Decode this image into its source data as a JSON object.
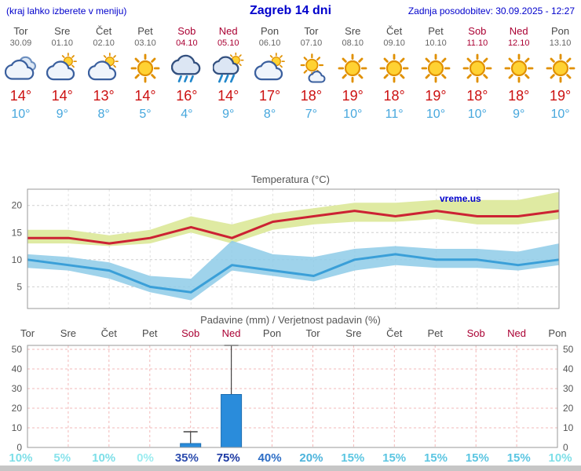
{
  "header": {
    "left_note": "(kraj lahko izberete v meniju)",
    "title": "Zagreb 14 dni",
    "updated": "Zadnja posodobitev: 30.09.2025 - 12:27"
  },
  "colors": {
    "link_blue": "#0000cc",
    "weekend_red": "#aa0033",
    "high_temp_red": "#cc1111",
    "low_temp_blue": "#46a7dd"
  },
  "days": [
    {
      "name": "Tor",
      "date": "30.09",
      "weekend": false,
      "icon": "cloudy",
      "high": "14°",
      "low": "10°"
    },
    {
      "name": "Sre",
      "date": "01.10",
      "weekend": false,
      "icon": "partly-cloudy",
      "high": "14°",
      "low": "9°"
    },
    {
      "name": "Čet",
      "date": "02.10",
      "weekend": false,
      "icon": "partly-cloudy",
      "high": "13°",
      "low": "8°"
    },
    {
      "name": "Pet",
      "date": "03.10",
      "weekend": false,
      "icon": "sun",
      "high": "14°",
      "low": "5°"
    },
    {
      "name": "Sob",
      "date": "04.10",
      "weekend": true,
      "icon": "rain",
      "high": "16°",
      "low": "4°"
    },
    {
      "name": "Ned",
      "date": "05.10",
      "weekend": true,
      "icon": "rain-sun",
      "high": "14°",
      "low": "9°"
    },
    {
      "name": "Pon",
      "date": "06.10",
      "weekend": false,
      "icon": "partly-cloudy",
      "high": "17°",
      "low": "8°"
    },
    {
      "name": "Tor",
      "date": "07.10",
      "weekend": false,
      "icon": "sun-small-cloud",
      "high": "18°",
      "low": "7°"
    },
    {
      "name": "Sre",
      "date": "08.10",
      "weekend": false,
      "icon": "sun",
      "high": "19°",
      "low": "10°"
    },
    {
      "name": "Čet",
      "date": "09.10",
      "weekend": false,
      "icon": "sun",
      "high": "18°",
      "low": "11°"
    },
    {
      "name": "Pet",
      "date": "10.10",
      "weekend": false,
      "icon": "sun",
      "high": "19°",
      "low": "10°"
    },
    {
      "name": "Sob",
      "date": "11.10",
      "weekend": true,
      "icon": "sun",
      "high": "18°",
      "low": "10°"
    },
    {
      "name": "Ned",
      "date": "12.10",
      "weekend": true,
      "icon": "sun",
      "high": "18°",
      "low": "9°"
    },
    {
      "name": "Pon",
      "date": "13.10",
      "weekend": false,
      "icon": "sun",
      "high": "19°",
      "low": "10°"
    }
  ],
  "chart_data": [
    {
      "type": "line",
      "title": "Temperatura (°C)",
      "x_labels": [
        "Tor",
        "Sre",
        "Čet",
        "Pet",
        "Sob",
        "Ned",
        "Pon",
        "Tor",
        "Sre",
        "Čet",
        "Pet",
        "Sob",
        "Ned",
        "Pon"
      ],
      "ylim": [
        1,
        23
      ],
      "yticks": [
        5,
        10,
        15,
        20
      ],
      "grid": true,
      "legend": "none",
      "watermark": "vreme.us",
      "series": [
        {
          "name": "max-temperature",
          "color": "#cc2233",
          "values": [
            14,
            14,
            13,
            14,
            16,
            14,
            17,
            18,
            19,
            18,
            19,
            18,
            18,
            19
          ]
        },
        {
          "name": "min-temperature",
          "color": "#3a9fd8",
          "values": [
            10,
            9,
            8,
            5,
            4,
            9,
            8,
            7,
            10,
            11,
            10,
            10,
            9,
            10
          ]
        }
      ],
      "bands": [
        {
          "name": "max-range",
          "color": "#dfeaa2",
          "upper": [
            15.5,
            15.5,
            14.5,
            15.5,
            18,
            16.5,
            18.5,
            19.5,
            20.5,
            20.5,
            21,
            21,
            21,
            22.5
          ],
          "lower": [
            13,
            13,
            12.5,
            13,
            15,
            13,
            15.5,
            16.5,
            17,
            17,
            17.5,
            16.5,
            16.5,
            17.5
          ]
        },
        {
          "name": "min-range",
          "color": "#8ecbe8",
          "upper": [
            11,
            10.5,
            9.5,
            7,
            6.5,
            13.5,
            11,
            10.5,
            12,
            12.5,
            12,
            12,
            11.5,
            13
          ],
          "lower": [
            8.5,
            8,
            6.5,
            4,
            2.5,
            8,
            7,
            6,
            8,
            9,
            8.5,
            8.5,
            8,
            9
          ]
        }
      ]
    },
    {
      "type": "bar",
      "title": "Padavine (mm) / Verjetnost padavin (%)",
      "categories": [
        "Tor",
        "Sre",
        "Čet",
        "Pet",
        "Sob",
        "Ned",
        "Pon",
        "Tor",
        "Sre",
        "Čet",
        "Pet",
        "Sob",
        "Ned",
        "Pon"
      ],
      "ylim": [
        0,
        52
      ],
      "yticks": [
        0,
        10,
        20,
        30,
        40,
        50
      ],
      "bar_color": "#2a8cdb",
      "values": [
        0,
        0,
        0,
        0,
        2,
        27,
        0,
        0,
        0,
        0,
        0,
        0,
        0,
        0
      ],
      "whisker_max": [
        0,
        0,
        0,
        0,
        8,
        52,
        0,
        0,
        0,
        0,
        0,
        0,
        0,
        0
      ],
      "probabilities": [
        {
          "label": "10%",
          "color": "#7ddfe8"
        },
        {
          "label": "5%",
          "color": "#8ae3ec"
        },
        {
          "label": "10%",
          "color": "#7ddfe8"
        },
        {
          "label": "0%",
          "color": "#9aecf0"
        },
        {
          "label": "35%",
          "color": "#2c4cae"
        },
        {
          "label": "75%",
          "color": "#1d3aa4"
        },
        {
          "label": "40%",
          "color": "#2d6ec6"
        },
        {
          "label": "20%",
          "color": "#4db4dc"
        },
        {
          "label": "15%",
          "color": "#5cc6e2"
        },
        {
          "label": "15%",
          "color": "#5cc6e2"
        },
        {
          "label": "15%",
          "color": "#5cc6e2"
        },
        {
          "label": "15%",
          "color": "#5cc6e2"
        },
        {
          "label": "15%",
          "color": "#5cc6e2"
        },
        {
          "label": "10%",
          "color": "#7ddfe8"
        }
      ]
    }
  ]
}
